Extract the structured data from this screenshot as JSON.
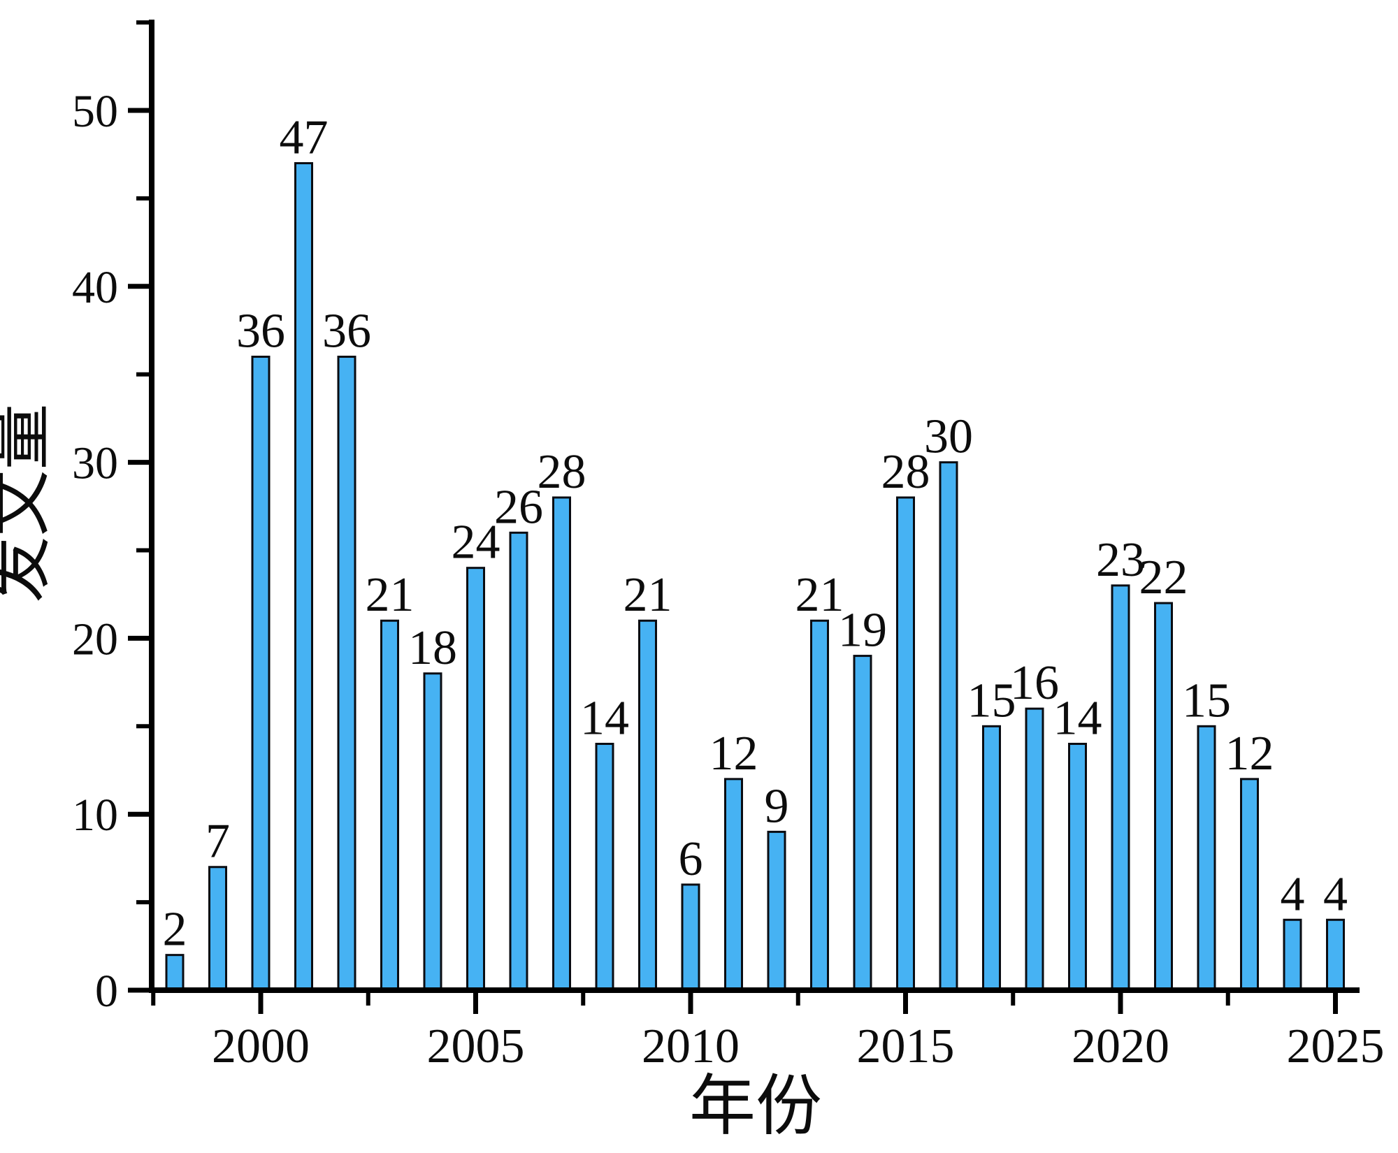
{
  "chart_data": {
    "type": "bar",
    "title": "",
    "xlabel": "年份",
    "ylabel": "发文量",
    "categories": [
      1998,
      1999,
      2000,
      2001,
      2002,
      2003,
      2004,
      2005,
      2006,
      2007,
      2008,
      2009,
      2010,
      2011,
      2012,
      2013,
      2014,
      2015,
      2016,
      2017,
      2018,
      2019,
      2020,
      2021,
      2022,
      2023,
      2024,
      2025
    ],
    "values": [
      2,
      7,
      36,
      47,
      36,
      21,
      18,
      24,
      26,
      28,
      14,
      21,
      6,
      12,
      9,
      21,
      19,
      28,
      30,
      15,
      16,
      14,
      23,
      22,
      15,
      12,
      4,
      4
    ],
    "bar_value_labels": [
      "2",
      "7",
      "36",
      "47",
      "36",
      "21",
      "18",
      "24",
      "26",
      "28",
      "14",
      "21",
      "6",
      "12",
      "9",
      "21",
      "19",
      "28",
      "30",
      "15",
      "16",
      "14",
      "23",
      "22",
      "15",
      "12",
      "4",
      "4"
    ],
    "ylim": [
      0,
      55
    ],
    "xlim": [
      1997.45,
      2025.55
    ],
    "y_major_ticks": [
      0,
      10,
      20,
      30,
      40,
      50
    ],
    "y_minor_ticks": [
      5,
      15,
      25,
      35,
      45,
      55
    ],
    "x_major_ticks": [
      2000,
      2005,
      2010,
      2015,
      2020,
      2025
    ],
    "x_minor_ticks": [
      1997.5,
      2002.5,
      2007.5,
      2012.5,
      2017.5,
      2022.5
    ],
    "grid": "off",
    "legend": "none",
    "bar_color": "#46b2f3",
    "bar_edge_color": "#0a0c12",
    "axis_color": "#000000",
    "text_color": "#0c0c0c",
    "background_color": "#ffffff"
  }
}
